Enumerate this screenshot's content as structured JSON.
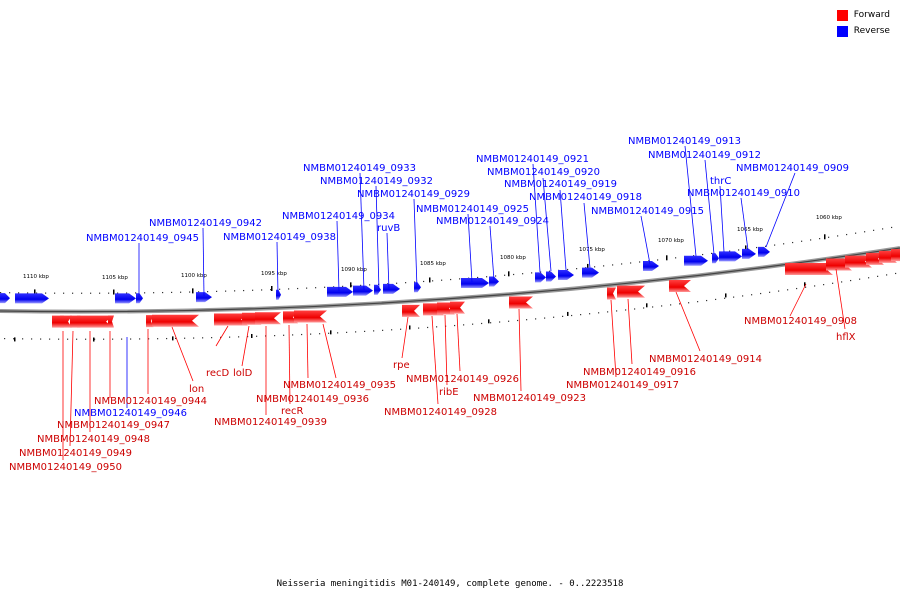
{
  "legend": [
    {
      "label": "Forward",
      "color": "#ff0000"
    },
    {
      "label": "Reverse",
      "color": "#0000ff"
    }
  ],
  "caption": "Neisseria meningitidis M01-240149, complete genome. - 0..2223518",
  "colors": {
    "forward": "#ff0000",
    "reverse": "#0000ff",
    "backbone": "#555555"
  },
  "scale_labels": [
    "1110 kbp",
    "1105 kbp",
    "1100 kbp",
    "1095 kbp",
    "1090 kbp",
    "1085 kbp",
    "1080 kbp",
    "1075 kbp",
    "1070 kbp",
    "1065 kbp",
    "1060 kbp"
  ],
  "reverse_labels": [
    "NMBM01240149_0913",
    "NMBM01240149_0912",
    "NMBM01240149_0909",
    "thrC",
    "NMBM01240149_0910",
    "NMBM01240149_0915",
    "NMBM01240149_0921",
    "NMBM01240149_0920",
    "NMBM01240149_0919",
    "NMBM01240149_0918",
    "NMBM01240149_0925",
    "NMBM01240149_0924",
    "NMBM01240149_0933",
    "NMBM01240149_0932",
    "NMBM01240149_0929",
    "NMBM01240149_0934",
    "ruvB",
    "NMBM01240149_0938",
    "NMBM01240149_0942",
    "NMBM01240149_0945",
    "NMBM01240149_0946"
  ],
  "forward_labels": [
    "NMBM01240149_0908",
    "hflX",
    "NMBM01240149_0914",
    "NMBM01240149_0916",
    "NMBM01240149_0917",
    "NMBM01240149_0923",
    "NMBM01240149_0926",
    "ribE",
    "NMBM01240149_0928",
    "rpe",
    "NMBM01240149_0935",
    "NMBM01240149_0936",
    "recR",
    "NMBM01240149_0939",
    "lolD",
    "recD",
    "lon",
    "NMBM01240149_0944",
    "NMBM01240149_0947",
    "NMBM01240149_0948",
    "NMBM01240149_0949",
    "NMBM01240149_0950"
  ]
}
